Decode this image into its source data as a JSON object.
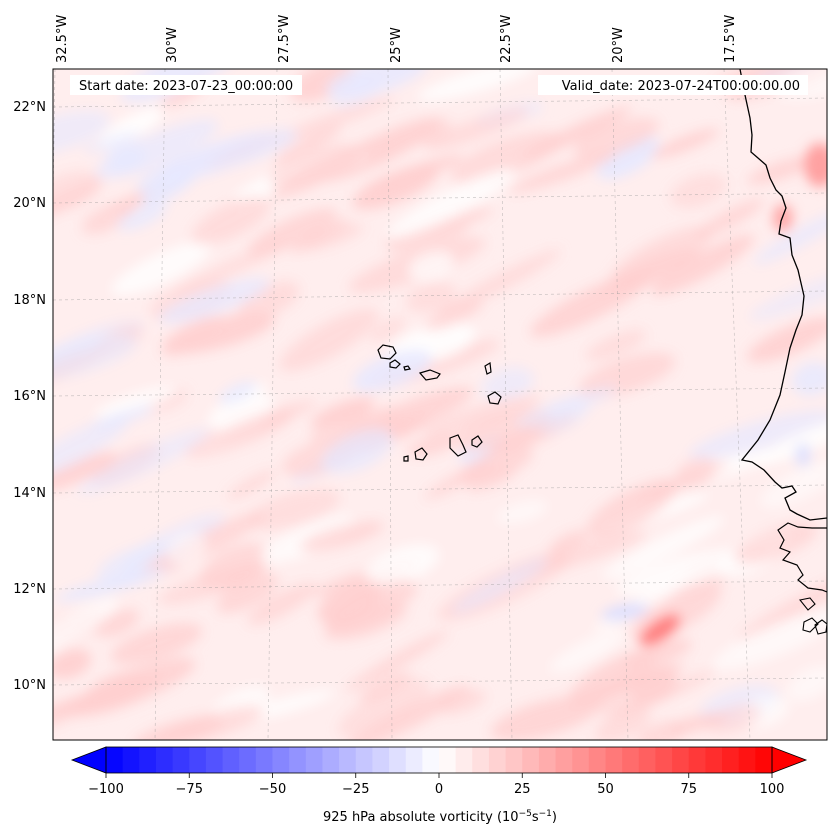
{
  "map": {
    "start_label": "Start date: 2023-07-23_00:00:00",
    "valid_label": "Valid_date: 2023-07-24T00:00:00.00",
    "lon_labels": [
      "32.5°W",
      "30°W",
      "27.5°W",
      "25°W",
      "22.5°W",
      "20°W",
      "17.5°W"
    ],
    "lat_labels": [
      "22°N",
      "20°N",
      "18°N",
      "16°N",
      "14°N",
      "12°N",
      "10°N"
    ],
    "field": "925 hPa absolute vorticity",
    "colormap": "bwr",
    "land_outline_color": "#000000"
  },
  "colorbar": {
    "label_prefix": "925 hPa absolute vorticity (10",
    "label_exp1": "−5",
    "label_mid": "s",
    "label_exp2": "−1",
    "label_suffix": ")",
    "min": -100,
    "max": 100,
    "ticks": [
      -100,
      -75,
      -50,
      -25,
      0,
      25,
      50,
      75,
      100
    ],
    "tick_labels": [
      "−100",
      "−75",
      "−50",
      "−25",
      "0",
      "25",
      "50",
      "75",
      "100"
    ],
    "colors": {
      "low": "#0000ff",
      "mid": "#ffffff",
      "high": "#ff0000"
    }
  }
}
